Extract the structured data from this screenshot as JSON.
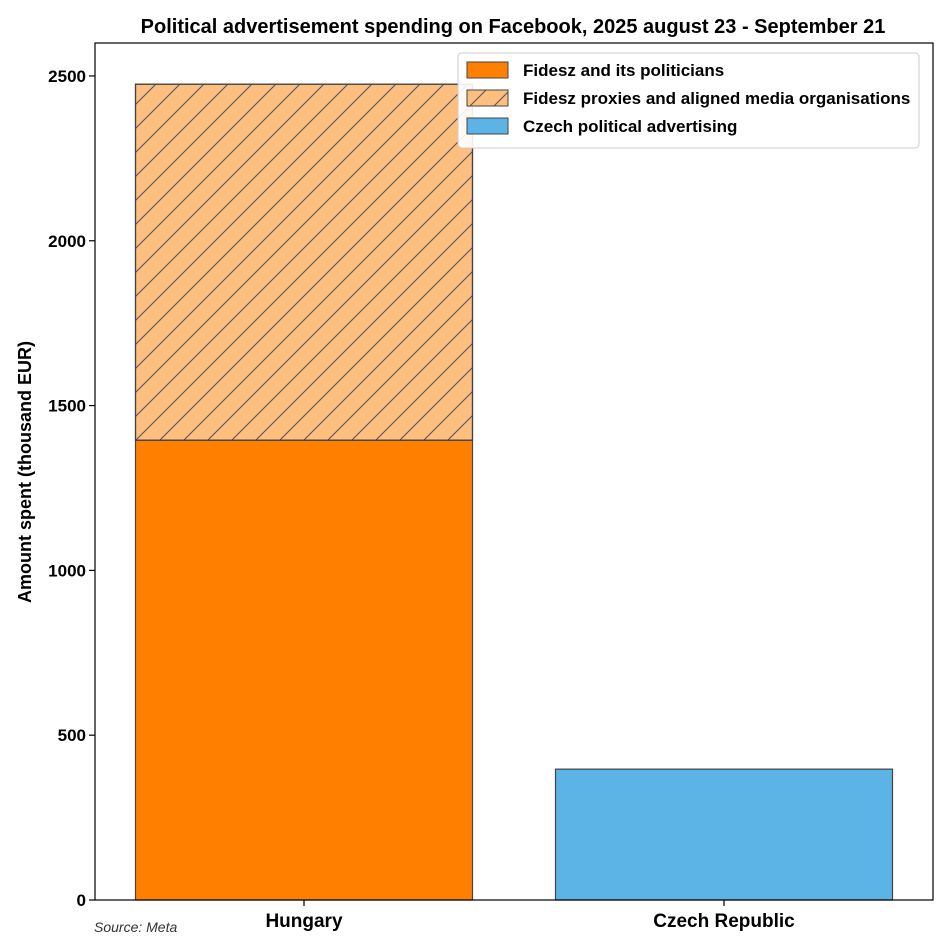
{
  "chart_data": {
    "type": "bar",
    "stacked": true,
    "title": "Political advertisement spending on Facebook, 2025 august 23 - September 21",
    "xlabel": "",
    "ylabel": "Amount spent (thousand EUR)",
    "categories": [
      "Hungary",
      "Czech Republic"
    ],
    "ylim": [
      0,
      2600
    ],
    "yticks": [
      0,
      500,
      1000,
      1500,
      2000,
      2500
    ],
    "grid": false,
    "legend_position": "top-right",
    "series": [
      {
        "name": "Fidesz and its politicians",
        "values": [
          1395,
          0
        ],
        "color": "#ff8000",
        "hatch": false
      },
      {
        "name": "Fidesz proxies and aligned media organisations",
        "values": [
          1080,
          0
        ],
        "color": "#fdbf80",
        "hatch": true
      },
      {
        "name": "Czech political advertising",
        "values": [
          0,
          397
        ],
        "color": "#5bb3e6",
        "hatch": false
      }
    ],
    "source": "Source: Meta"
  }
}
